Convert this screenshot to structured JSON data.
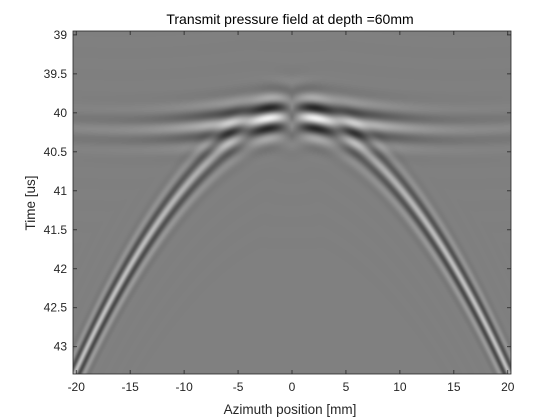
{
  "chart_data": {
    "type": "heatmap",
    "title": "Transmit pressure field at depth =60mm",
    "xlabel": "Azimuth position [mm]",
    "ylabel": "Time [us]",
    "xlim": [
      -20.3,
      20.3
    ],
    "ylim": [
      38.95,
      43.35
    ],
    "y_reversed": true,
    "x_ticks": [
      -20,
      -15,
      -10,
      -5,
      0,
      5,
      10,
      15,
      20
    ],
    "x_tick_labels": [
      "-20",
      "-15",
      "-10",
      "-5",
      "0",
      "5",
      "10",
      "15",
      "20"
    ],
    "y_ticks": [
      39,
      39.5,
      40,
      40.5,
      41,
      41.5,
      42,
      42.5,
      43
    ],
    "y_tick_labels": [
      "39",
      "39.5",
      "40",
      "40.5",
      "41",
      "41.5",
      "42",
      "42.5",
      "43"
    ],
    "colormap": "gray",
    "background_level": 0.5,
    "field": {
      "focus_azimuth_mm": 0,
      "focus_time_us": 40.0,
      "wavefront_curvature_us_per_mm2": 0.0068,
      "pulse_period_us": 0.28,
      "pulse_half_width_us": 0.27
    },
    "grid": false
  }
}
